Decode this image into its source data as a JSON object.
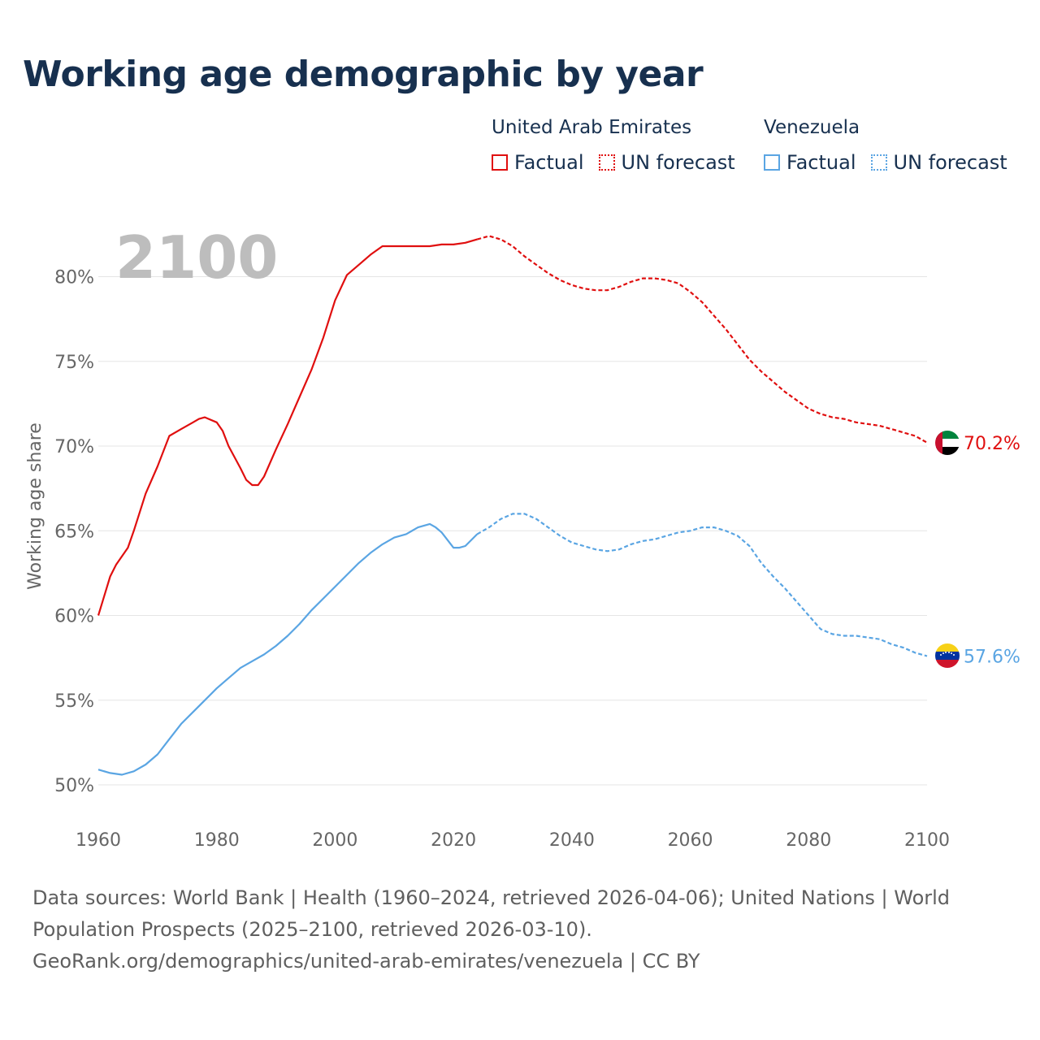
{
  "title": "Working age demographic by year",
  "colors": {
    "uae": "#e00f0f",
    "venezuela": "#5aa5e3",
    "title": "#17304f",
    "axis_text": "#666666",
    "grid": "#e5e5e5",
    "year_watermark": "#bdbdbd"
  },
  "legend": {
    "groups": [
      {
        "name": "United Arab Emirates",
        "factual_label": "Factual",
        "forecast_label": "UN forecast",
        "color": "#e00f0f"
      },
      {
        "name": "Venezuela",
        "factual_label": "Factual",
        "forecast_label": "UN forecast",
        "color": "#5aa5e3"
      }
    ]
  },
  "chart_data": {
    "type": "line",
    "title": "Working age demographic by year",
    "year_label": "2100",
    "xlabel": "",
    "ylabel": "Working age share",
    "xlim": [
      1960,
      2100
    ],
    "ylim": [
      50,
      83
    ],
    "x_ticks": [
      1960,
      1980,
      2000,
      2020,
      2040,
      2060,
      2080,
      2100
    ],
    "y_ticks": [
      50,
      55,
      60,
      65,
      70,
      75,
      80
    ],
    "y_tick_labels": [
      "50%",
      "55%",
      "60%",
      "65%",
      "70%",
      "75%",
      "80%"
    ],
    "forecast_start": 2024,
    "series": [
      {
        "name": "United Arab Emirates",
        "color": "#e00f0f",
        "end_label": "70.2%",
        "flag": "uae",
        "x": [
          1960,
          1962,
          1963,
          1965,
          1966,
          1968,
          1970,
          1972,
          1974,
          1976,
          1977,
          1978,
          1980,
          1981,
          1982,
          1984,
          1985,
          1986,
          1987,
          1988,
          1990,
          1992,
          1994,
          1996,
          1998,
          2000,
          2002,
          2004,
          2006,
          2008,
          2010,
          2012,
          2014,
          2016,
          2018,
          2020,
          2022,
          2024,
          2026,
          2028,
          2030,
          2032,
          2034,
          2036,
          2038,
          2040,
          2042,
          2044,
          2046,
          2048,
          2050,
          2052,
          2054,
          2056,
          2058,
          2060,
          2062,
          2064,
          2066,
          2068,
          2070,
          2072,
          2074,
          2076,
          2078,
          2080,
          2082,
          2084,
          2086,
          2088,
          2090,
          2092,
          2094,
          2096,
          2098,
          2100
        ],
        "values": [
          60.0,
          62.3,
          63.0,
          64.0,
          65.0,
          67.2,
          68.8,
          70.6,
          71.0,
          71.4,
          71.6,
          71.7,
          71.4,
          70.9,
          70.0,
          68.7,
          68.0,
          67.7,
          67.7,
          68.2,
          69.8,
          71.3,
          72.9,
          74.5,
          76.4,
          78.6,
          80.1,
          80.7,
          81.3,
          81.8,
          81.8,
          81.8,
          81.8,
          81.8,
          81.9,
          81.9,
          82.0,
          82.2,
          82.4,
          82.2,
          81.8,
          81.2,
          80.7,
          80.2,
          79.8,
          79.5,
          79.3,
          79.2,
          79.2,
          79.4,
          79.7,
          79.9,
          79.9,
          79.8,
          79.6,
          79.1,
          78.5,
          77.7,
          76.9,
          76.0,
          75.1,
          74.4,
          73.8,
          73.2,
          72.7,
          72.2,
          71.9,
          71.7,
          71.6,
          71.4,
          71.3,
          71.2,
          71.0,
          70.8,
          70.6,
          70.2
        ]
      },
      {
        "name": "Venezuela",
        "color": "#5aa5e3",
        "end_label": "57.6%",
        "flag": "venezuela",
        "x": [
          1960,
          1962,
          1964,
          1966,
          1968,
          1970,
          1972,
          1974,
          1976,
          1978,
          1980,
          1982,
          1984,
          1986,
          1988,
          1990,
          1992,
          1994,
          1996,
          1998,
          2000,
          2002,
          2004,
          2006,
          2008,
          2010,
          2012,
          2014,
          2016,
          2017,
          2018,
          2020,
          2021,
          2022,
          2024,
          2026,
          2028,
          2030,
          2032,
          2034,
          2036,
          2038,
          2040,
          2042,
          2044,
          2046,
          2048,
          2050,
          2052,
          2054,
          2056,
          2058,
          2060,
          2062,
          2064,
          2066,
          2068,
          2070,
          2072,
          2074,
          2076,
          2078,
          2080,
          2082,
          2084,
          2086,
          2088,
          2090,
          2092,
          2094,
          2096,
          2098,
          2100
        ],
        "values": [
          50.9,
          50.7,
          50.6,
          50.8,
          51.2,
          51.8,
          52.7,
          53.6,
          54.3,
          55.0,
          55.7,
          56.3,
          56.9,
          57.3,
          57.7,
          58.2,
          58.8,
          59.5,
          60.3,
          61.0,
          61.7,
          62.4,
          63.1,
          63.7,
          64.2,
          64.6,
          64.8,
          65.2,
          65.4,
          65.2,
          64.9,
          64.0,
          64.0,
          64.1,
          64.8,
          65.2,
          65.7,
          66.0,
          66.0,
          65.7,
          65.2,
          64.7,
          64.3,
          64.1,
          63.9,
          63.8,
          63.9,
          64.2,
          64.4,
          64.5,
          64.7,
          64.9,
          65.0,
          65.2,
          65.2,
          65.0,
          64.7,
          64.1,
          63.1,
          62.3,
          61.6,
          60.8,
          60.0,
          59.2,
          58.9,
          58.8,
          58.8,
          58.7,
          58.6,
          58.3,
          58.1,
          57.8,
          57.6
        ]
      }
    ]
  },
  "footer": {
    "line1": "Data sources: World Bank | Health (1960–2024, retrieved 2026-04-06); United Nations | World",
    "line2": "Population Prospects (2025–2100, retrieved 2026-03-10).",
    "line3": "GeoRank.org/demographics/united-arab-emirates/venezuela | CC BY"
  }
}
